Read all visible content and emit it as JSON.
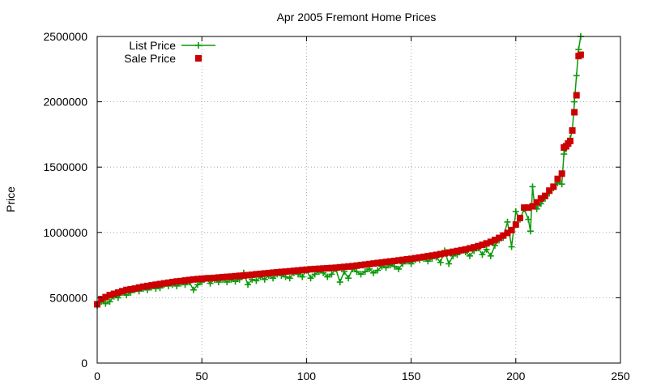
{
  "chart_data": {
    "type": "line",
    "title": "Apr 2005 Fremont Home Prices",
    "xlabel": "",
    "ylabel": "Price",
    "xlim": [
      0,
      250
    ],
    "ylim": [
      0,
      2500000
    ],
    "xticks": [
      0,
      50,
      100,
      150,
      200,
      250
    ],
    "yticks": [
      0,
      500000,
      1000000,
      1500000,
      2000000,
      2500000
    ],
    "grid": true,
    "legend_position": "top-left",
    "series": [
      {
        "name": "List Price",
        "style": "line+cross",
        "color": "#0a9a0a",
        "points": [
          [
            0,
            440000
          ],
          [
            2,
            470000
          ],
          [
            4,
            455000
          ],
          [
            6,
            470000
          ],
          [
            8,
            510000
          ],
          [
            10,
            500000
          ],
          [
            12,
            540000
          ],
          [
            14,
            520000
          ],
          [
            16,
            540000
          ],
          [
            18,
            560000
          ],
          [
            20,
            550000
          ],
          [
            22,
            570000
          ],
          [
            24,
            560000
          ],
          [
            26,
            580000
          ],
          [
            28,
            570000
          ],
          [
            30,
            575000
          ],
          [
            32,
            600000
          ],
          [
            34,
            590000
          ],
          [
            36,
            600000
          ],
          [
            38,
            590000
          ],
          [
            40,
            610000
          ],
          [
            42,
            600000
          ],
          [
            44,
            620000
          ],
          [
            46,
            560000
          ],
          [
            48,
            600000
          ],
          [
            50,
            620000
          ],
          [
            52,
            650000
          ],
          [
            54,
            610000
          ],
          [
            56,
            640000
          ],
          [
            58,
            620000
          ],
          [
            60,
            640000
          ],
          [
            62,
            620000
          ],
          [
            64,
            640000
          ],
          [
            66,
            625000
          ],
          [
            68,
            640000
          ],
          [
            70,
            690000
          ],
          [
            72,
            600000
          ],
          [
            74,
            640000
          ],
          [
            76,
            630000
          ],
          [
            78,
            660000
          ],
          [
            80,
            640000
          ],
          [
            82,
            670000
          ],
          [
            84,
            650000
          ],
          [
            86,
            680000
          ],
          [
            88,
            670000
          ],
          [
            90,
            660000
          ],
          [
            92,
            650000
          ],
          [
            94,
            690000
          ],
          [
            96,
            680000
          ],
          [
            98,
            660000
          ],
          [
            100,
            710000
          ],
          [
            102,
            650000
          ],
          [
            104,
            680000
          ],
          [
            106,
            700000
          ],
          [
            108,
            690000
          ],
          [
            110,
            660000
          ],
          [
            112,
            680000
          ],
          [
            114,
            720000
          ],
          [
            116,
            620000
          ],
          [
            118,
            700000
          ],
          [
            120,
            650000
          ],
          [
            122,
            720000
          ],
          [
            124,
            700000
          ],
          [
            126,
            680000
          ],
          [
            128,
            700000
          ],
          [
            130,
            720000
          ],
          [
            132,
            690000
          ],
          [
            134,
            710000
          ],
          [
            136,
            740000
          ],
          [
            138,
            730000
          ],
          [
            140,
            750000
          ],
          [
            142,
            740000
          ],
          [
            144,
            720000
          ],
          [
            146,
            760000
          ],
          [
            148,
            780000
          ],
          [
            150,
            760000
          ],
          [
            152,
            790000
          ],
          [
            154,
            790000
          ],
          [
            156,
            800000
          ],
          [
            158,
            780000
          ],
          [
            160,
            800000
          ],
          [
            162,
            810000
          ],
          [
            164,
            770000
          ],
          [
            166,
            860000
          ],
          [
            168,
            760000
          ],
          [
            170,
            820000
          ],
          [
            172,
            830000
          ],
          [
            174,
            860000
          ],
          [
            176,
            850000
          ],
          [
            178,
            820000
          ],
          [
            180,
            860000
          ],
          [
            182,
            880000
          ],
          [
            184,
            830000
          ],
          [
            186,
            870000
          ],
          [
            188,
            820000
          ],
          [
            190,
            900000
          ],
          [
            192,
            940000
          ],
          [
            194,
            960000
          ],
          [
            196,
            1080000
          ],
          [
            198,
            890000
          ],
          [
            200,
            1160000
          ],
          [
            202,
            1100000
          ],
          [
            204,
            1180000
          ],
          [
            206,
            1100000
          ],
          [
            207,
            1010000
          ],
          [
            208,
            1350000
          ],
          [
            209,
            1200000
          ],
          [
            210,
            1180000
          ],
          [
            212,
            1220000
          ],
          [
            214,
            1260000
          ],
          [
            216,
            1300000
          ],
          [
            218,
            1340000
          ],
          [
            220,
            1380000
          ],
          [
            222,
            1370000
          ],
          [
            223,
            1600000
          ],
          [
            224,
            1640000
          ],
          [
            225,
            1700000
          ],
          [
            226,
            1720000
          ],
          [
            227,
            1780000
          ],
          [
            228,
            2000000
          ],
          [
            229,
            2200000
          ],
          [
            230,
            2400000
          ],
          [
            231,
            2500000
          ]
        ]
      },
      {
        "name": "Sale Price",
        "style": "square",
        "color": "#cc0000",
        "points": [
          [
            0,
            450000
          ],
          [
            2,
            490000
          ],
          [
            4,
            505000
          ],
          [
            6,
            520000
          ],
          [
            8,
            530000
          ],
          [
            10,
            540000
          ],
          [
            12,
            550000
          ],
          [
            14,
            560000
          ],
          [
            16,
            565000
          ],
          [
            18,
            570000
          ],
          [
            20,
            578000
          ],
          [
            22,
            585000
          ],
          [
            24,
            590000
          ],
          [
            26,
            595000
          ],
          [
            28,
            600000
          ],
          [
            30,
            605000
          ],
          [
            32,
            610000
          ],
          [
            34,
            615000
          ],
          [
            36,
            620000
          ],
          [
            38,
            625000
          ],
          [
            40,
            628000
          ],
          [
            42,
            632000
          ],
          [
            44,
            636000
          ],
          [
            46,
            640000
          ],
          [
            48,
            643000
          ],
          [
            50,
            646000
          ],
          [
            52,
            648000
          ],
          [
            54,
            650000
          ],
          [
            56,
            652000
          ],
          [
            58,
            655000
          ],
          [
            60,
            658000
          ],
          [
            62,
            660000
          ],
          [
            64,
            662000
          ],
          [
            66,
            665000
          ],
          [
            68,
            668000
          ],
          [
            70,
            670000
          ],
          [
            72,
            673000
          ],
          [
            74,
            676000
          ],
          [
            76,
            680000
          ],
          [
            78,
            683000
          ],
          [
            80,
            686000
          ],
          [
            82,
            689000
          ],
          [
            84,
            692000
          ],
          [
            86,
            695000
          ],
          [
            88,
            698000
          ],
          [
            90,
            700000
          ],
          [
            92,
            703000
          ],
          [
            94,
            706000
          ],
          [
            96,
            709000
          ],
          [
            98,
            712000
          ],
          [
            100,
            715000
          ],
          [
            102,
            718000
          ],
          [
            104,
            720000
          ],
          [
            106,
            722000
          ],
          [
            108,
            724000
          ],
          [
            110,
            726000
          ],
          [
            112,
            728000
          ],
          [
            114,
            730000
          ],
          [
            116,
            733000
          ],
          [
            118,
            736000
          ],
          [
            120,
            739000
          ],
          [
            122,
            742000
          ],
          [
            124,
            746000
          ],
          [
            126,
            750000
          ],
          [
            128,
            754000
          ],
          [
            130,
            758000
          ],
          [
            132,
            762000
          ],
          [
            134,
            766000
          ],
          [
            136,
            770000
          ],
          [
            138,
            774000
          ],
          [
            140,
            778000
          ],
          [
            142,
            782000
          ],
          [
            144,
            786000
          ],
          [
            146,
            790000
          ],
          [
            148,
            794000
          ],
          [
            150,
            798000
          ],
          [
            152,
            803000
          ],
          [
            154,
            808000
          ],
          [
            156,
            813000
          ],
          [
            158,
            818000
          ],
          [
            160,
            823000
          ],
          [
            162,
            828000
          ],
          [
            164,
            834000
          ],
          [
            166,
            840000
          ],
          [
            168,
            846000
          ],
          [
            170,
            852000
          ],
          [
            172,
            858000
          ],
          [
            174,
            864000
          ],
          [
            176,
            870000
          ],
          [
            178,
            878000
          ],
          [
            180,
            886000
          ],
          [
            182,
            895000
          ],
          [
            184,
            905000
          ],
          [
            186,
            916000
          ],
          [
            188,
            928000
          ],
          [
            190,
            942000
          ],
          [
            192,
            958000
          ],
          [
            194,
            976000
          ],
          [
            196,
            996000
          ],
          [
            198,
            1018000
          ],
          [
            200,
            1060000
          ],
          [
            202,
            1110000
          ],
          [
            204,
            1190000
          ],
          [
            206,
            1190000
          ],
          [
            208,
            1200000
          ],
          [
            210,
            1230000
          ],
          [
            212,
            1260000
          ],
          [
            214,
            1280000
          ],
          [
            216,
            1320000
          ],
          [
            218,
            1350000
          ],
          [
            220,
            1410000
          ],
          [
            222,
            1450000
          ],
          [
            223,
            1650000
          ],
          [
            224,
            1660000
          ],
          [
            225,
            1680000
          ],
          [
            226,
            1700000
          ],
          [
            227,
            1780000
          ],
          [
            228,
            1920000
          ],
          [
            229,
            2050000
          ],
          [
            230,
            2350000
          ],
          [
            231,
            2360000
          ]
        ]
      }
    ]
  }
}
